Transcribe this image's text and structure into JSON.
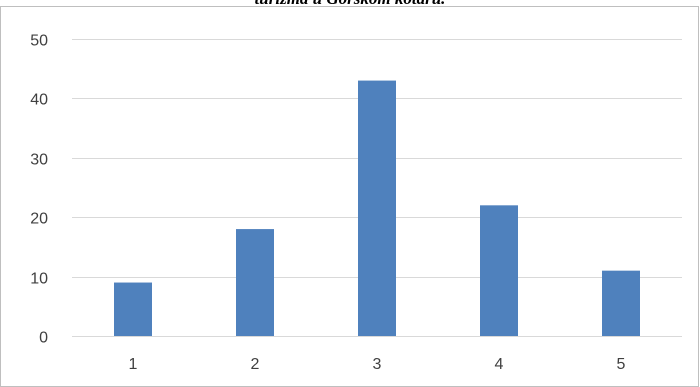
{
  "chart_data": {
    "type": "bar",
    "title": "turizma u Gorskom kotaru.",
    "xlabel": "",
    "ylabel": "",
    "categories": [
      "1",
      "2",
      "3",
      "4",
      "5"
    ],
    "values": [
      9,
      18,
      43,
      22,
      11
    ],
    "ylim": [
      0,
      50
    ],
    "yticks": [
      "0",
      "10",
      "20",
      "30",
      "40",
      "50"
    ],
    "grid": true,
    "legend": "none",
    "colors": {
      "bar": "#4f81bd",
      "grid": "#d9d9d9",
      "border": "#bfbfbf",
      "text": "#404040"
    }
  }
}
